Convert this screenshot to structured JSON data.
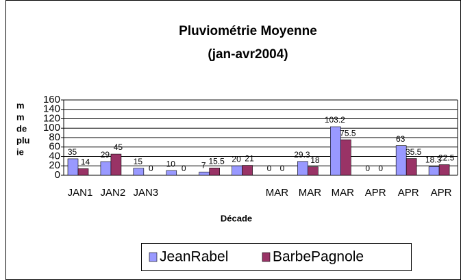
{
  "chart_data": {
    "type": "bar",
    "title": [
      "Pluviométrie Moyenne",
      "(jan-avr2004)"
    ],
    "y_label": [
      "m",
      "m",
      "de",
      "plu",
      "ie"
    ],
    "x_label": "Décade",
    "categories": [
      "JAN1",
      "JAN2",
      "JAN3",
      null,
      null,
      null,
      "MAR",
      "MAR",
      "MAR",
      "APR",
      "APR",
      "APR"
    ],
    "series": [
      {
        "name": "JeanRabel",
        "color": "#9999ff",
        "values": [
          35,
          29,
          15,
          10,
          7,
          20,
          0,
          29.3,
          103.2,
          0,
          63,
          18.3
        ]
      },
      {
        "name": "BarbePagnole",
        "color": "#993366",
        "values": [
          14,
          45,
          0,
          0,
          15.5,
          21,
          0,
          18,
          75.5,
          0,
          35.5,
          22.5
        ]
      }
    ],
    "ylim": [
      0,
      160
    ],
    "yticks": [
      0,
      20,
      40,
      60,
      80,
      100,
      120,
      140,
      160
    ],
    "grid": true
  }
}
